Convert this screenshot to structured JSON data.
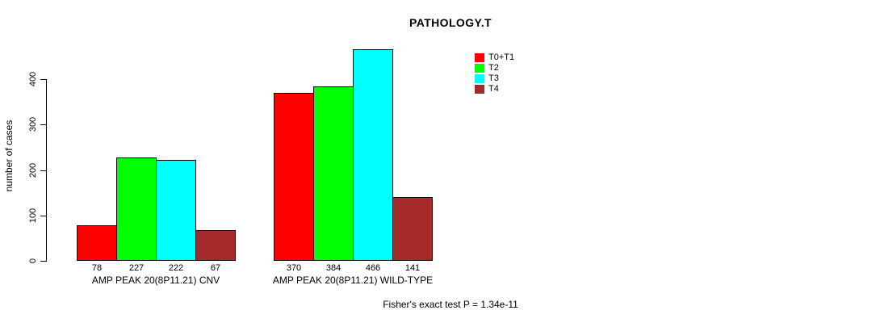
{
  "chart_data": {
    "type": "bar",
    "title": "PATHOLOGY.T",
    "ylabel": "number of cases",
    "xlabel": "",
    "ylim": [
      0,
      400
    ],
    "yticks": [
      0,
      100,
      200,
      300,
      400
    ],
    "grid": false,
    "legend_position": "top-right",
    "categories": [
      "AMP PEAK 20(8P11.21) CNV",
      "AMP PEAK 20(8P11.21) WILD-TYPE"
    ],
    "series": [
      {
        "name": "T0+T1",
        "color": "#FF0000",
        "values": [
          78,
          370
        ]
      },
      {
        "name": "T2",
        "color": "#00FF00",
        "values": [
          227,
          384
        ]
      },
      {
        "name": "T3",
        "color": "#00FFFF",
        "values": [
          222,
          466
        ]
      },
      {
        "name": "T4",
        "color": "#A52A2A",
        "values": [
          67,
          141
        ]
      }
    ],
    "bar_value_labels": [
      [
        78,
        227,
        222,
        67
      ],
      [
        370,
        384,
        466,
        141
      ]
    ],
    "annotation": "Fisher's exact test P = 1.34e-11"
  }
}
